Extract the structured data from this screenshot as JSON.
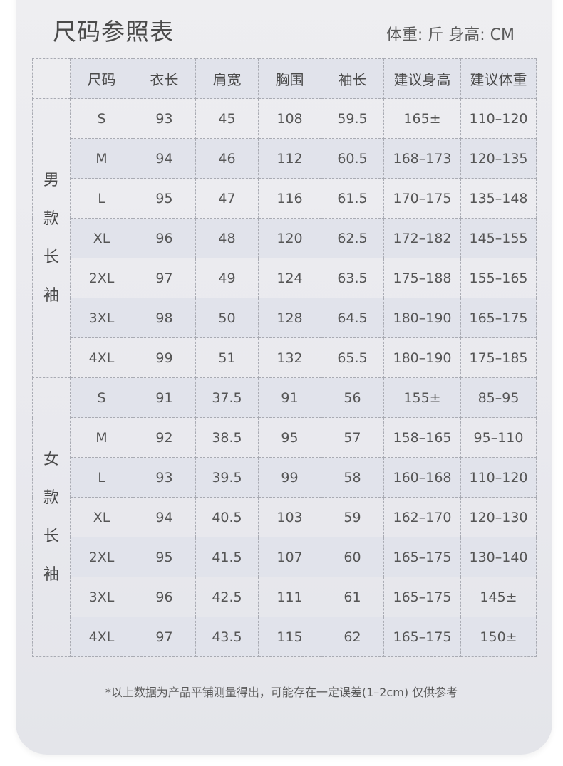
{
  "title": "尺码参照表",
  "units": "体重: 斤  身高: CM",
  "columns": [
    "尺码",
    "衣长",
    "肩宽",
    "胸围",
    "袖长",
    "建议身高",
    "建议体重"
  ],
  "groups": [
    {
      "label": [
        "男",
        "款",
        "长",
        "袖"
      ],
      "rows": [
        [
          "S",
          "93",
          "45",
          "108",
          "59.5",
          "165±",
          "110–120"
        ],
        [
          "M",
          "94",
          "46",
          "112",
          "60.5",
          "168–173",
          "120–135"
        ],
        [
          "L",
          "95",
          "47",
          "116",
          "61.5",
          "170–175",
          "135–148"
        ],
        [
          "XL",
          "96",
          "48",
          "120",
          "62.5",
          "172–182",
          "145–155"
        ],
        [
          "2XL",
          "97",
          "49",
          "124",
          "63.5",
          "175–188",
          "155–165"
        ],
        [
          "3XL",
          "98",
          "50",
          "128",
          "64.5",
          "180–190",
          "165–175"
        ],
        [
          "4XL",
          "99",
          "51",
          "132",
          "65.5",
          "180–190",
          "175–185"
        ]
      ]
    },
    {
      "label": [
        "女",
        "款",
        "长",
        "袖"
      ],
      "rows": [
        [
          "S",
          "91",
          "37.5",
          "91",
          "56",
          "155±",
          "85–95"
        ],
        [
          "M",
          "92",
          "38.5",
          "95",
          "57",
          "158–165",
          "95–110"
        ],
        [
          "L",
          "93",
          "39.5",
          "99",
          "58",
          "160–168",
          "110–120"
        ],
        [
          "XL",
          "94",
          "40.5",
          "103",
          "59",
          "162–170",
          "120–130"
        ],
        [
          "2XL",
          "95",
          "41.5",
          "107",
          "60",
          "165–175",
          "130–140"
        ],
        [
          "3XL",
          "96",
          "42.5",
          "111",
          "61",
          "165–175",
          "145±"
        ],
        [
          "4XL",
          "97",
          "43.5",
          "115",
          "62",
          "165–175",
          "150±"
        ]
      ]
    }
  ],
  "note": "*以上数据为产品平铺测量得出，可能存在一定误差(1–2cm) 仅供参考"
}
